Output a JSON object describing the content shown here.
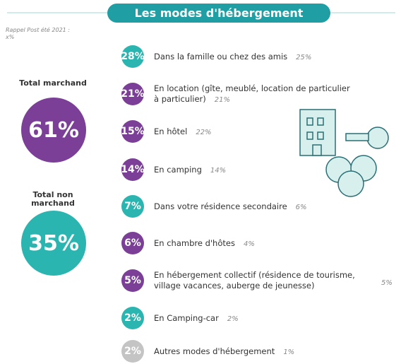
{
  "header": {
    "title": "Les modes d'hébergement",
    "note": [
      "Rappel Post été 2021 :",
      "x%"
    ]
  },
  "totals": [
    {
      "label": [
        "Total marchand"
      ],
      "value": "61%"
    },
    {
      "label": [
        "Total non",
        "marchand"
      ],
      "value": "35%"
    }
  ],
  "items": [
    {
      "value": "28%",
      "label": [
        "Dans la famille ou chez des amis"
      ],
      "previous": "25%"
    },
    {
      "value": "21%",
      "label": [
        "En location (gîte, meublé, location de particulier",
        "à particulier)"
      ],
      "previous": "21%"
    },
    {
      "value": "15%",
      "label": [
        "En hôtel"
      ],
      "previous": "22%"
    },
    {
      "value": "14%",
      "label": [
        "En camping"
      ],
      "previous": "14%"
    },
    {
      "value": "7%",
      "label": [
        "Dans votre résidence secondaire"
      ],
      "previous": "6%"
    },
    {
      "value": "6%",
      "label": [
        "En chambre d'hôtes"
      ],
      "previous": "4%"
    },
    {
      "value": "5%",
      "label": [
        "En hébergement collectif (résidence de tourisme,",
        "village vacances, auberge de jeunesse)"
      ],
      "previous": "5%"
    },
    {
      "value": "2%",
      "label": [
        "En Camping-car"
      ],
      "previous": "2%"
    },
    {
      "value": "2%",
      "label": [
        "Autres modes d'hébergement"
      ],
      "previous": "1%"
    }
  ]
}
